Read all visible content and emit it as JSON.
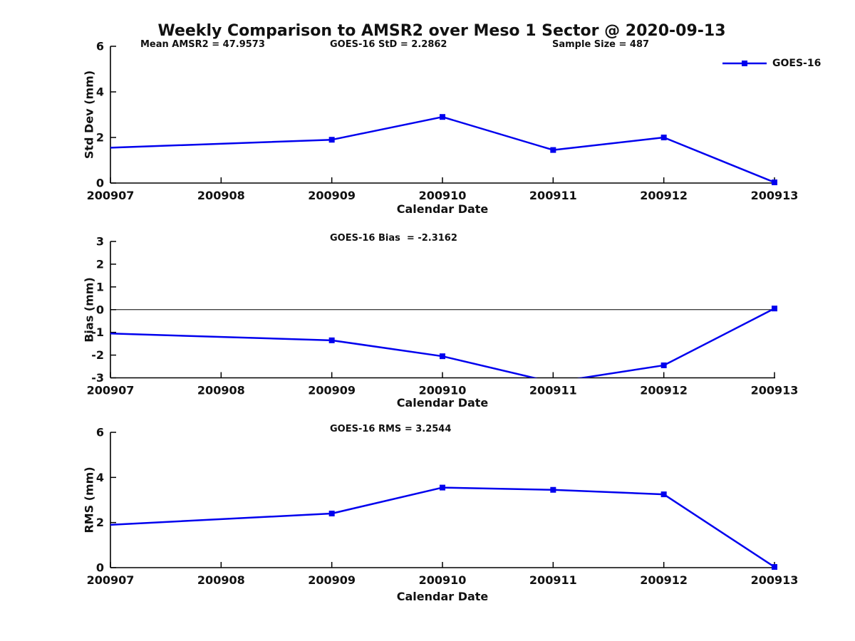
{
  "figure": {
    "title": "Weekly Comparison to AMSR2 over Meso 1 Sector @ 2020-09-13",
    "annotations": {
      "mean_amsr2": "Mean AMSR2 = 47.9573",
      "goes_std": "GOES-16 StD = 2.2862",
      "sample_size": "Sample Size = 487"
    },
    "legend": {
      "label": "GOES-16",
      "marker": "square",
      "position": "upper-right"
    },
    "colors": {
      "series": "#0000ee",
      "axis": "#000000",
      "text": "#111111",
      "background": "#ffffff"
    }
  },
  "chart_data": [
    {
      "type": "line",
      "panel": "std-dev",
      "title": "",
      "xlabel": "Calendar Date",
      "ylabel": "Std Dev (mm)",
      "xlim": [
        200907,
        200913
      ],
      "ylim": [
        0,
        6
      ],
      "xticks": [
        "200907",
        "200908",
        "200909",
        "200910",
        "200911",
        "200912",
        "200913"
      ],
      "yticks": [
        0,
        2,
        4,
        6
      ],
      "grid": false,
      "zero_line": false,
      "marker_on_first_point": false,
      "series": [
        {
          "name": "GOES-16",
          "x": [
            200907,
            200909,
            200910,
            200911,
            200912,
            200913
          ],
          "y": [
            1.55,
            1.9,
            2.9,
            1.45,
            2.0,
            0.03
          ]
        }
      ]
    },
    {
      "type": "line",
      "panel": "bias",
      "title": "GOES-16 Bias  = -2.3162",
      "xlabel": "Calendar Date",
      "ylabel": "Bias (mm)",
      "xlim": [
        200907,
        200913
      ],
      "ylim": [
        -3,
        3
      ],
      "xticks": [
        "200907",
        "200908",
        "200909",
        "200910",
        "200911",
        "200912",
        "200913"
      ],
      "yticks": [
        -3,
        -2,
        -1,
        0,
        1,
        2,
        3
      ],
      "grid": false,
      "zero_line": true,
      "clipped_to_ylim": true,
      "marker_on_first_point": false,
      "series": [
        {
          "name": "GOES-16",
          "x": [
            200907,
            200909,
            200910,
            200911,
            200912,
            200913
          ],
          "y": [
            -1.05,
            -1.35,
            -2.05,
            -3.2,
            -2.45,
            0.05
          ]
        }
      ]
    },
    {
      "type": "line",
      "panel": "rms",
      "title": "GOES-16 RMS = 3.2544",
      "xlabel": "Calendar Date",
      "ylabel": "RMS (mm)",
      "xlim": [
        200907,
        200913
      ],
      "ylim": [
        0,
        6
      ],
      "xticks": [
        "200907",
        "200908",
        "200909",
        "200910",
        "200911",
        "200912",
        "200913"
      ],
      "yticks": [
        0,
        2,
        4,
        6
      ],
      "grid": false,
      "zero_line": false,
      "marker_on_first_point": false,
      "series": [
        {
          "name": "GOES-16",
          "x": [
            200907,
            200909,
            200910,
            200911,
            200912,
            200913
          ],
          "y": [
            1.9,
            2.4,
            3.55,
            3.45,
            3.25,
            0.03
          ]
        }
      ]
    }
  ]
}
